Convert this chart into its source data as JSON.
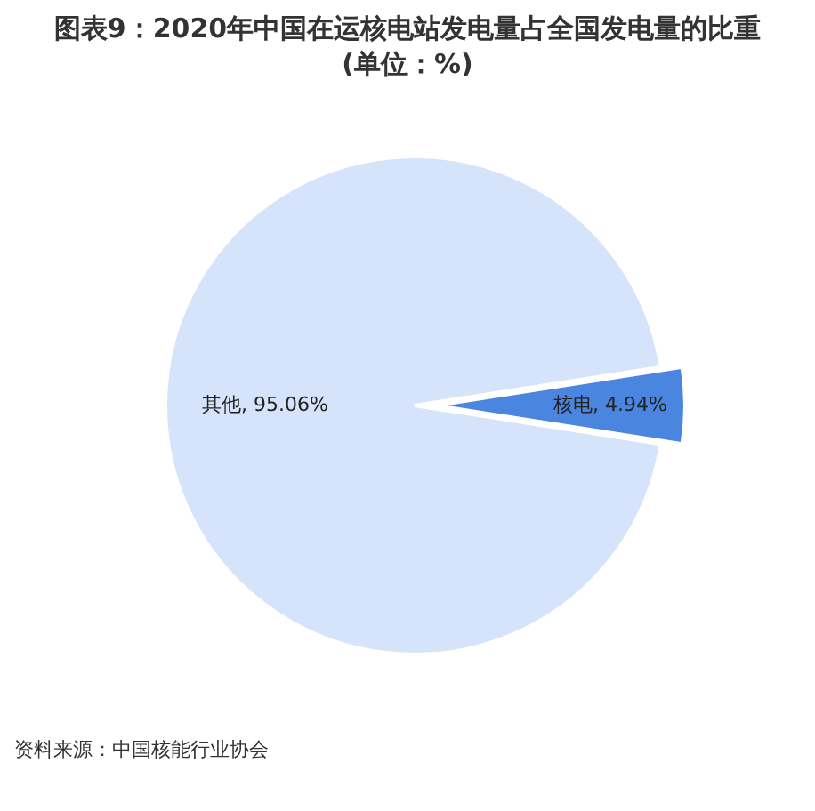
{
  "chart_data": {
    "type": "pie",
    "title": "图表9：2020年中国在运核电站发电量占全国发电量的比重(单位：%)",
    "categories": [
      "其他",
      "核电"
    ],
    "values": [
      95.06,
      4.94
    ],
    "colors": [
      "#d5e4fa",
      "#4a86e0"
    ],
    "value_labels": [
      "95.06%",
      "4.94%"
    ],
    "legend": false,
    "annotations": [
      "资料来源：中国核能行业协会"
    ]
  }
}
